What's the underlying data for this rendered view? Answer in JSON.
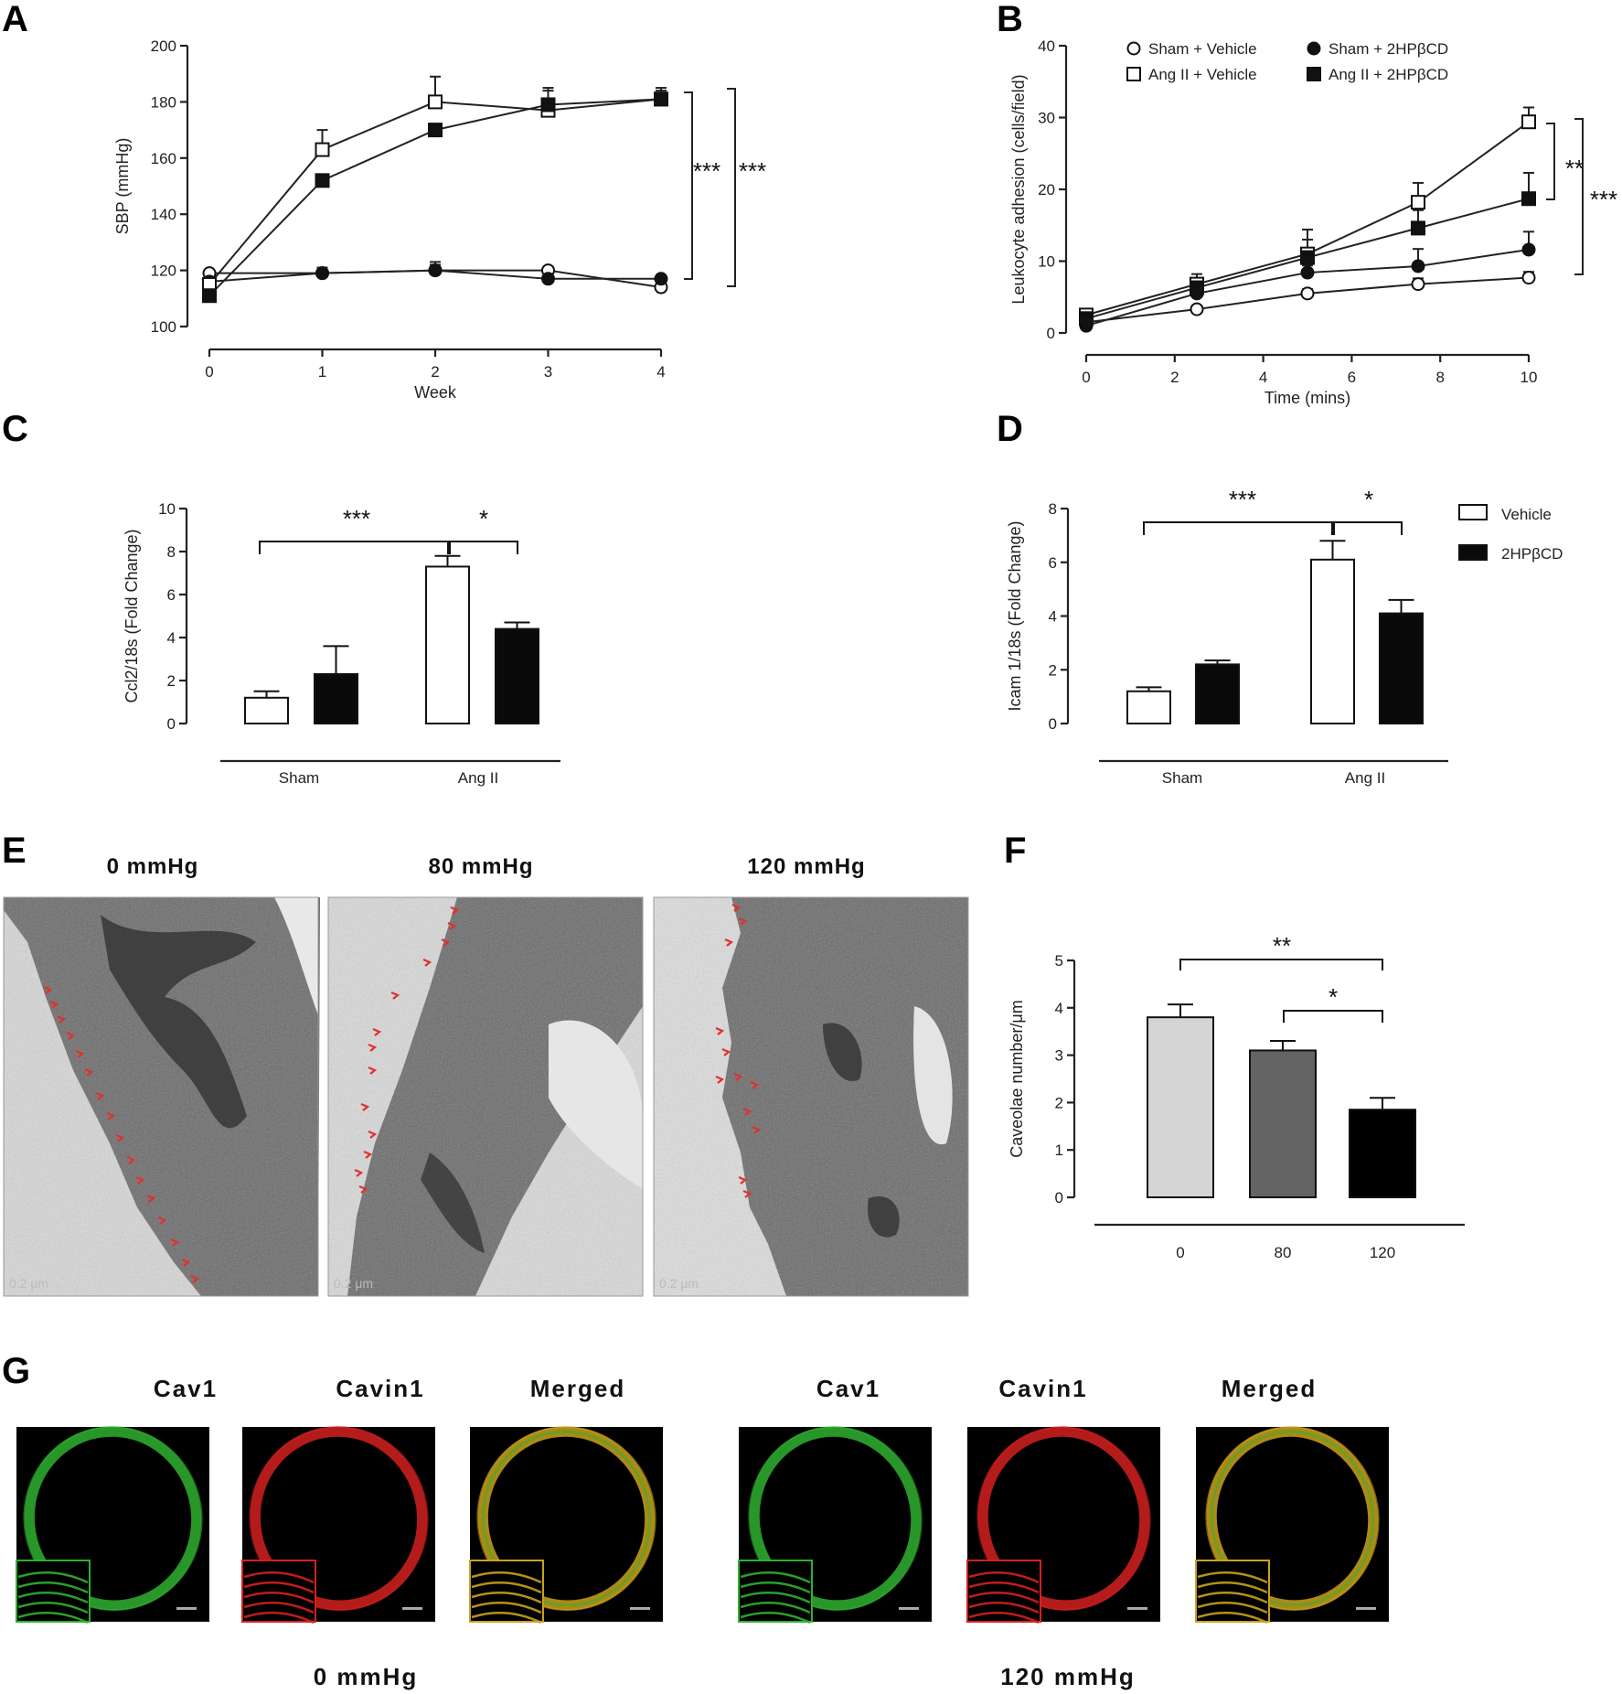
{
  "panels": {
    "A": "A",
    "B": "B",
    "C": "C",
    "D": "D",
    "E": "E",
    "F": "F",
    "G": "G"
  },
  "chart_data": [
    {
      "id": "A",
      "type": "line",
      "x": [
        0,
        1,
        2,
        3,
        4
      ],
      "xticks": [
        "0",
        "1",
        "2",
        "3",
        "4"
      ],
      "yticks": [
        "100",
        "120",
        "140",
        "160",
        "180",
        "200"
      ],
      "xlabel": "Week",
      "ylabel": "SBP (mmHg)",
      "ylim": [
        100,
        200
      ],
      "series": [
        {
          "marker": "open-circle",
          "values": [
            119,
            119,
            120,
            120,
            114
          ],
          "err": [
            0,
            2,
            3,
            0,
            0
          ]
        },
        {
          "marker": "filled-circle",
          "values": [
            116,
            119,
            120,
            117,
            117
          ],
          "err": [
            0,
            0,
            2,
            0,
            0
          ]
        },
        {
          "marker": "open-square",
          "values": [
            115,
            163,
            180,
            177,
            181
          ],
          "err": [
            0,
            7,
            9,
            8,
            4
          ]
        },
        {
          "marker": "filled-square",
          "values": [
            111,
            152,
            170,
            179,
            181
          ],
          "err": [
            0,
            0,
            0,
            5,
            3
          ]
        }
      ],
      "annotations": [
        "***",
        "***"
      ]
    },
    {
      "id": "B",
      "type": "line",
      "x": [
        0,
        2.5,
        5,
        7.5,
        10
      ],
      "xticks": [
        "0",
        "2",
        "4",
        "6",
        "8",
        "10"
      ],
      "yticks": [
        "0",
        "10",
        "20",
        "30",
        "40"
      ],
      "xlabel": "Time (mins)",
      "ylabel": "Leukocyte adhesion (cells/field)",
      "ylim": [
        0,
        40
      ],
      "series": [
        {
          "name": "Sham + Vehicle",
          "marker": "open-circle",
          "values": [
            1.5,
            3.3,
            5.5,
            6.8,
            7.7
          ],
          "err": [
            0,
            0,
            0.6,
            0.8,
            0.8
          ]
        },
        {
          "name": "Sham + 2HPβCD",
          "marker": "filled-circle",
          "values": [
            1.0,
            5.5,
            8.4,
            9.3,
            11.6
          ],
          "err": [
            0,
            0.8,
            1.0,
            2.4,
            2.5
          ]
        },
        {
          "name": "Ang II + Vehicle",
          "marker": "open-square",
          "values": [
            2.5,
            6.8,
            11.0,
            18.2,
            29.4
          ],
          "err": [
            0.8,
            1.4,
            3.4,
            2.7,
            2.0
          ]
        },
        {
          "name": "Ang II + 2HPβCD",
          "marker": "filled-square",
          "values": [
            2.0,
            6.3,
            10.5,
            14.6,
            18.7
          ],
          "err": [
            0.5,
            1.2,
            2.5,
            2.5,
            3.6
          ]
        }
      ],
      "annotations": [
        "**",
        "***"
      ]
    },
    {
      "id": "C",
      "type": "bar",
      "categories": [
        "Sham",
        "Ang II"
      ],
      "yticks": [
        "0",
        "2",
        "4",
        "6",
        "8",
        "10"
      ],
      "ylabel": "Ccl2/18s (Fold Change)",
      "ylim": [
        0,
        10
      ],
      "series": [
        {
          "name": "Vehicle",
          "values": [
            1.2,
            7.3
          ],
          "err": [
            0.3,
            0.5
          ]
        },
        {
          "name": "2HPβCD",
          "values": [
            2.3,
            4.4
          ],
          "err": [
            1.3,
            0.3
          ]
        }
      ],
      "annotations": [
        "***",
        "*"
      ]
    },
    {
      "id": "D",
      "type": "bar",
      "categories": [
        "Sham",
        "Ang II"
      ],
      "yticks": [
        "0",
        "2",
        "4",
        "6",
        "8"
      ],
      "ylabel": "Icam 1/18s (Fold Change)",
      "ylim": [
        0,
        8
      ],
      "series": [
        {
          "name": "Vehicle",
          "values": [
            1.2,
            6.1
          ],
          "err": [
            0.15,
            0.7
          ]
        },
        {
          "name": "2HPβCD",
          "values": [
            2.2,
            4.1
          ],
          "err": [
            0.15,
            0.5
          ]
        }
      ],
      "legend": [
        "Vehicle",
        "2HPβCD"
      ],
      "annotations": [
        "***",
        "*"
      ]
    },
    {
      "id": "F",
      "type": "bar",
      "categories": [
        "0",
        "80",
        "120"
      ],
      "yticks": [
        "0",
        "1",
        "2",
        "3",
        "4",
        "5"
      ],
      "ylabel": "Caveolae number/μm",
      "ylim": [
        0,
        5
      ],
      "series": [
        {
          "values": [
            3.8,
            3.1,
            1.85
          ],
          "err": [
            0.27,
            0.2,
            0.25
          ],
          "colors": [
            "#d4d4d4",
            "#646464",
            "#000000"
          ]
        }
      ],
      "annotations": [
        "**",
        "*"
      ]
    }
  ],
  "em": {
    "headers": [
      "0 mmHg",
      "80 mmHg",
      "120 mmHg"
    ],
    "scale_labels": [
      "0.2 μm",
      "0.2 μm",
      "0.2 μm"
    ]
  },
  "confocal": {
    "group1": {
      "cav1": "Cav1",
      "cavin1": "Cavin1",
      "merged": "Merged",
      "label": "0 mmHg"
    },
    "group2": {
      "cav1": "Cav1",
      "cavin1": "Cavin1",
      "merged": "Merged",
      "label": "120 mmHg"
    }
  },
  "colors": {
    "green": "#2fb02f",
    "red": "#d42020",
    "yellow": "#c9a21c",
    "arrow": "#e03030"
  }
}
